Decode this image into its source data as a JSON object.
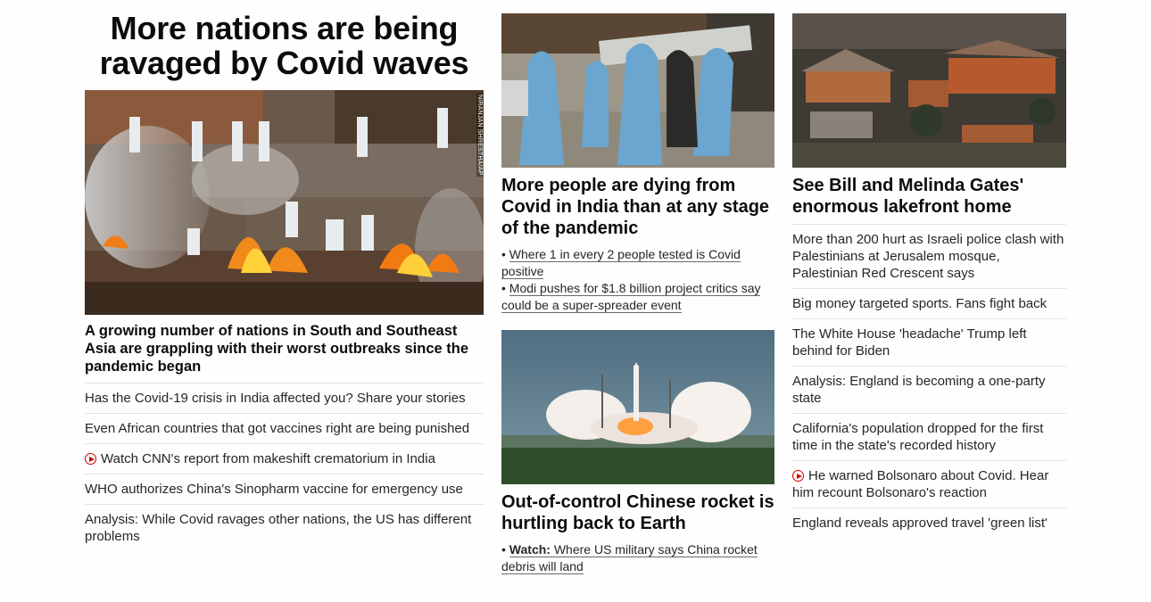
{
  "lead": {
    "title": "More nations are being ravaged by Covid waves",
    "photo_credit": "NIRANJAN SHRESTHA/AP",
    "description": "A growing number of nations in South and Southeast Asia are grappling with their worst outbreaks since the pandemic began",
    "links": [
      {
        "text": "Has the Covid-19 crisis in India affected you? Share your stories",
        "video": false
      },
      {
        "text": "Even African countries that got vaccines right are being punished",
        "video": false
      },
      {
        "text": "Watch CNN's report from makeshift crematorium in India",
        "video": true
      },
      {
        "text": "WHO authorizes China's Sinopharm vaccine for emergency use",
        "video": false
      },
      {
        "text": "Analysis: While Covid ravages other nations, the US has different problems",
        "video": false
      }
    ]
  },
  "india": {
    "headline": "More people are dying from Covid in India than at any stage of the pandemic",
    "bullets": [
      "Where 1 in every 2 people tested is Covid positive",
      "Modi pushes for $1.8 billion project critics say could be a super-spreader event"
    ]
  },
  "rocket": {
    "headline": "Out-of-control Chinese rocket is hurtling back to Earth",
    "bullet_prefix": "Watch:",
    "bullet": "Where US military says China rocket debris will land"
  },
  "gates": {
    "headline": "See Bill and Melinda Gates' enormous lakefront home",
    "links": [
      {
        "text": "More than 200 hurt as Israeli police clash with Palestinians at Jerusalem mosque, Palestinian Red Crescent says",
        "video": false
      },
      {
        "text": "Big money targeted sports. Fans fight back",
        "video": false
      },
      {
        "text": "The White House 'headache' Trump left behind for Biden",
        "video": false
      },
      {
        "text": "Analysis: England is becoming a one-party state",
        "video": false
      },
      {
        "text": "California's population dropped for the first time in the state's recorded history",
        "video": false
      },
      {
        "text": "He warned Bolsonaro about Covid. Hear him recount Bolsonaro's reaction",
        "video": true
      },
      {
        "text": "England reveals approved travel 'green list'",
        "video": false
      }
    ]
  }
}
